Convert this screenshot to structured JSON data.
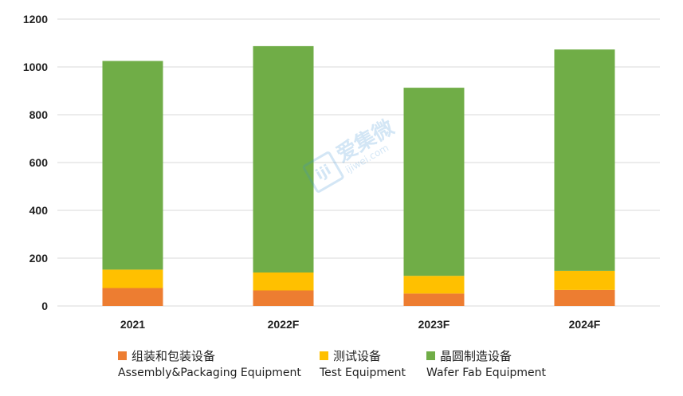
{
  "chart_data": {
    "type": "bar",
    "stacked": true,
    "categories": [
      "2021",
      "2022F",
      "2023F",
      "2024F"
    ],
    "series": [
      {
        "name": "组装和包装设备",
        "subname": "Assembly&Packaging Equipment",
        "color": "#ED7D31",
        "values": [
          75,
          65,
          52,
          67
        ]
      },
      {
        "name": "测试设备",
        "subname": "Test Equipment",
        "color": "#FFC000",
        "values": [
          77,
          75,
          74,
          80
        ]
      },
      {
        "name": "晶圆制造设备",
        "subname": "Wafer Fab Equipment",
        "color": "#70AD47",
        "values": [
          873,
          947,
          787,
          926
        ]
      }
    ],
    "ylim": [
      0,
      1200
    ],
    "yticks": [
      "0",
      "200",
      "400",
      "600",
      "800",
      "1000",
      "1200"
    ],
    "grid": true,
    "legend_position": "bottom"
  },
  "watermark": {
    "logo": "ijiwei",
    "text": "爱集微",
    "url": "ijiwei.com"
  }
}
